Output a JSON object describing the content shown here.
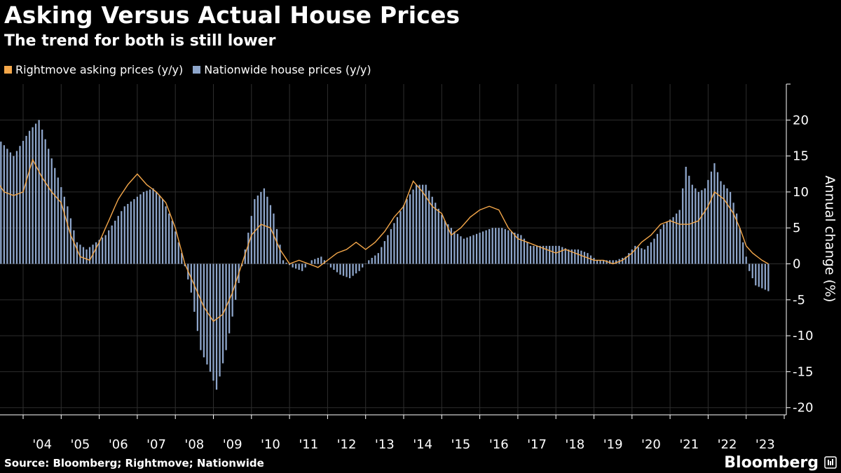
{
  "title": "Asking Versus Actual House Prices",
  "subtitle": "The trend for both is still lower",
  "source": "Source: Bloomberg; Rightmove; Nationwide",
  "brand": "Bloomberg",
  "legend": [
    {
      "label": "Rightmove asking prices (y/y)",
      "color": "#f4a74a"
    },
    {
      "label": "Nationwide house prices (y/y)",
      "color": "#8ea6cb"
    }
  ],
  "chart_data": {
    "type": "bar",
    "ylabel": "Annual change (%)",
    "ylim": [
      -21,
      25
    ],
    "yticks": [
      -20,
      -15,
      -10,
      -5,
      0,
      5,
      10,
      15,
      20
    ],
    "x_tick_labels": [
      "'04",
      "'05",
      "'06",
      "'07",
      "'08",
      "'09",
      "'10",
      "'11",
      "'12",
      "'13",
      "'14",
      "'15",
      "'16",
      "'17",
      "'18",
      "'19",
      "'20",
      "'21",
      "'22",
      "'23"
    ],
    "x_start": "2003-01",
    "x_end": "2023-08",
    "grid": true,
    "legend_position": "top-left",
    "series": [
      {
        "name": "Nationwide house prices (y/y)",
        "kind": "bar",
        "color": "#8ea6cb",
        "anchors": [
          [
            "2003-01",
            21.5
          ],
          [
            "2003-06",
            17
          ],
          [
            "2003-10",
            15
          ],
          [
            "2004-03",
            18.5
          ],
          [
            "2004-06",
            20
          ],
          [
            "2004-09",
            16
          ],
          [
            "2004-12",
            12
          ],
          [
            "2005-03",
            8
          ],
          [
            "2005-06",
            3
          ],
          [
            "2005-09",
            2
          ],
          [
            "2005-12",
            3
          ],
          [
            "2006-03",
            4
          ],
          [
            "2006-06",
            6
          ],
          [
            "2006-09",
            8
          ],
          [
            "2006-12",
            9
          ],
          [
            "2007-03",
            10
          ],
          [
            "2007-06",
            10.5
          ],
          [
            "2007-09",
            9
          ],
          [
            "2007-12",
            6
          ],
          [
            "2008-03",
            1.5
          ],
          [
            "2008-06",
            -4
          ],
          [
            "2008-09",
            -12
          ],
          [
            "2008-12",
            -15
          ],
          [
            "2009-02",
            -17.5
          ],
          [
            "2009-05",
            -12
          ],
          [
            "2009-08",
            -5
          ],
          [
            "2009-11",
            2
          ],
          [
            "2010-02",
            9
          ],
          [
            "2010-05",
            10.5
          ],
          [
            "2010-08",
            7
          ],
          [
            "2010-11",
            0.5
          ],
          [
            "2011-02",
            -0.5
          ],
          [
            "2011-05",
            -1
          ],
          [
            "2011-08",
            0.5
          ],
          [
            "2011-11",
            1
          ],
          [
            "2012-02",
            -0.5
          ],
          [
            "2012-05",
            -1.5
          ],
          [
            "2012-08",
            -2
          ],
          [
            "2012-11",
            -1
          ],
          [
            "2013-02",
            0.5
          ],
          [
            "2013-05",
            1.5
          ],
          [
            "2013-08",
            4
          ],
          [
            "2013-11",
            6.5
          ],
          [
            "2014-02",
            9
          ],
          [
            "2014-05",
            11
          ],
          [
            "2014-08",
            11
          ],
          [
            "2014-11",
            8.5
          ],
          [
            "2015-02",
            6
          ],
          [
            "2015-05",
            4.5
          ],
          [
            "2015-08",
            3.5
          ],
          [
            "2015-11",
            4
          ],
          [
            "2016-02",
            4.5
          ],
          [
            "2016-05",
            5
          ],
          [
            "2016-08",
            5
          ],
          [
            "2016-11",
            4.5
          ],
          [
            "2017-02",
            4
          ],
          [
            "2017-05",
            2.5
          ],
          [
            "2017-08",
            2.5
          ],
          [
            "2017-11",
            2.5
          ],
          [
            "2018-02",
            2.5
          ],
          [
            "2018-05",
            2
          ],
          [
            "2018-08",
            2
          ],
          [
            "2018-11",
            1.5
          ],
          [
            "2019-02",
            0.5
          ],
          [
            "2019-05",
            0.5
          ],
          [
            "2019-08",
            0.5
          ],
          [
            "2019-11",
            1
          ],
          [
            "2020-02",
            2.5
          ],
          [
            "2020-05",
            2
          ],
          [
            "2020-08",
            3.5
          ],
          [
            "2020-11",
            5.5
          ],
          [
            "2021-02",
            6.5
          ],
          [
            "2021-04",
            7.5
          ],
          [
            "2021-06",
            13.5
          ],
          [
            "2021-08",
            11
          ],
          [
            "2021-10",
            10
          ],
          [
            "2021-12",
            10.5
          ],
          [
            "2022-03",
            14
          ],
          [
            "2022-05",
            11.5
          ],
          [
            "2022-08",
            10
          ],
          [
            "2022-10",
            7
          ],
          [
            "2022-12",
            3
          ],
          [
            "2023-02",
            -1
          ],
          [
            "2023-04",
            -3
          ],
          [
            "2023-08",
            -3.8
          ]
        ]
      },
      {
        "name": "Rightmove asking prices (y/y)",
        "kind": "line",
        "color": "#f4a74a",
        "anchors": [
          [
            "2003-01",
            16
          ],
          [
            "2003-04",
            12
          ],
          [
            "2003-07",
            10
          ],
          [
            "2003-10",
            9.5
          ],
          [
            "2004-01",
            10
          ],
          [
            "2004-04",
            14.5
          ],
          [
            "2004-07",
            12
          ],
          [
            "2004-10",
            10
          ],
          [
            "2005-01",
            8.5
          ],
          [
            "2005-04",
            4
          ],
          [
            "2005-07",
            1
          ],
          [
            "2005-10",
            0.5
          ],
          [
            "2006-01",
            3
          ],
          [
            "2006-04",
            6
          ],
          [
            "2006-07",
            9
          ],
          [
            "2006-10",
            11
          ],
          [
            "2007-01",
            12.5
          ],
          [
            "2007-04",
            11
          ],
          [
            "2007-07",
            10
          ],
          [
            "2007-10",
            8.5
          ],
          [
            "2008-01",
            5
          ],
          [
            "2008-04",
            0
          ],
          [
            "2008-07",
            -3
          ],
          [
            "2008-10",
            -6
          ],
          [
            "2009-01",
            -8
          ],
          [
            "2009-04",
            -7
          ],
          [
            "2009-07",
            -4
          ],
          [
            "2009-10",
            0
          ],
          [
            "2010-01",
            4
          ],
          [
            "2010-04",
            5.5
          ],
          [
            "2010-07",
            5
          ],
          [
            "2010-10",
            2
          ],
          [
            "2011-01",
            0
          ],
          [
            "2011-04",
            0.5
          ],
          [
            "2011-07",
            0
          ],
          [
            "2011-10",
            -0.5
          ],
          [
            "2012-01",
            0.5
          ],
          [
            "2012-04",
            1.5
          ],
          [
            "2012-07",
            2
          ],
          [
            "2012-10",
            3
          ],
          [
            "2013-01",
            2
          ],
          [
            "2013-04",
            3
          ],
          [
            "2013-07",
            4.5
          ],
          [
            "2013-10",
            6.5
          ],
          [
            "2014-01",
            8
          ],
          [
            "2014-04",
            11.5
          ],
          [
            "2014-07",
            10
          ],
          [
            "2014-10",
            8
          ],
          [
            "2015-01",
            7
          ],
          [
            "2015-04",
            4
          ],
          [
            "2015-07",
            5
          ],
          [
            "2015-10",
            6.5
          ],
          [
            "2016-01",
            7.5
          ],
          [
            "2016-04",
            8
          ],
          [
            "2016-07",
            7.5
          ],
          [
            "2016-10",
            5
          ],
          [
            "2017-01",
            3.5
          ],
          [
            "2017-04",
            3
          ],
          [
            "2017-07",
            2.5
          ],
          [
            "2017-10",
            2
          ],
          [
            "2018-01",
            1.5
          ],
          [
            "2018-04",
            2
          ],
          [
            "2018-07",
            1.5
          ],
          [
            "2018-10",
            1
          ],
          [
            "2019-01",
            0.5
          ],
          [
            "2019-04",
            0.5
          ],
          [
            "2019-07",
            0
          ],
          [
            "2019-10",
            0.5
          ],
          [
            "2020-01",
            1.5
          ],
          [
            "2020-04",
            3
          ],
          [
            "2020-07",
            4
          ],
          [
            "2020-10",
            5.5
          ],
          [
            "2021-01",
            6
          ],
          [
            "2021-04",
            5.5
          ],
          [
            "2021-07",
            5.5
          ],
          [
            "2021-10",
            6
          ],
          [
            "2022-01",
            8
          ],
          [
            "2022-03",
            10
          ],
          [
            "2022-06",
            9
          ],
          [
            "2022-09",
            7
          ],
          [
            "2022-11",
            5
          ],
          [
            "2023-01",
            2.5
          ],
          [
            "2023-03",
            1.5
          ],
          [
            "2023-06",
            0.5
          ],
          [
            "2023-08",
            0
          ]
        ]
      }
    ]
  }
}
